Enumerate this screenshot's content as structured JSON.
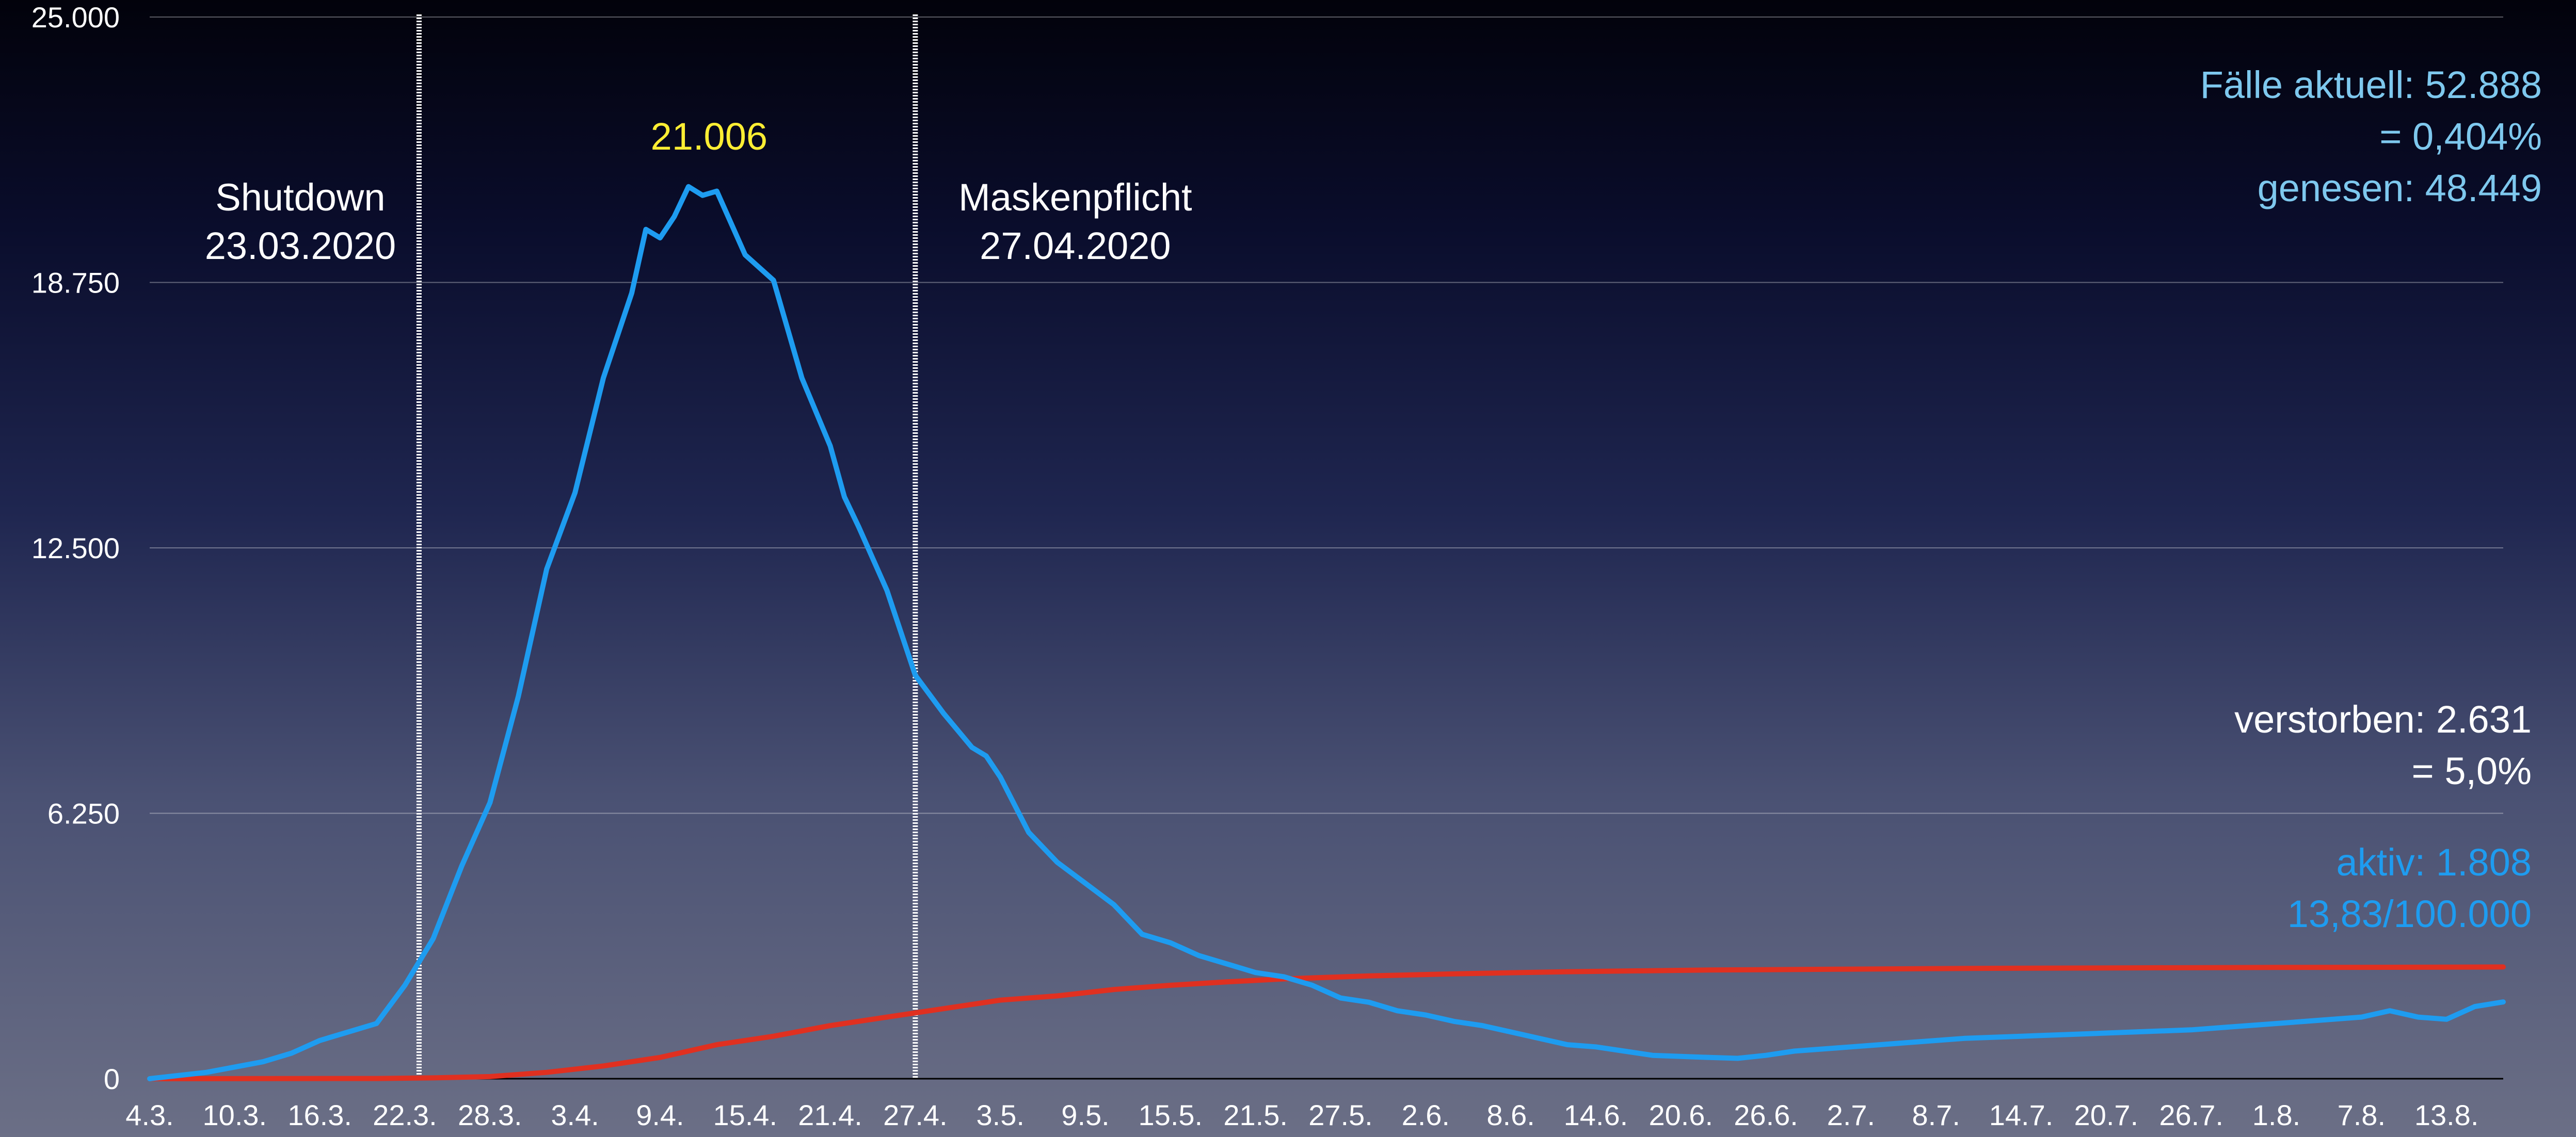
{
  "chart_data": {
    "type": "line",
    "title": "",
    "xlabel": "",
    "ylabel": "",
    "ylim": [
      0,
      25000
    ],
    "grid": true,
    "y_ticks": [
      0,
      6250,
      12500,
      18750,
      25000
    ],
    "y_tick_labels": [
      "0",
      "6.250",
      "12.500",
      "18.750",
      "25.000"
    ],
    "x_ticks": [
      "4.3.",
      "10.3.",
      "16.3.",
      "22.3.",
      "28.3.",
      "3.4.",
      "9.4.",
      "15.4.",
      "21.4.",
      "27.4.",
      "3.5.",
      "9.5.",
      "15.5.",
      "21.5.",
      "27.5.",
      "2.6.",
      "8.6.",
      "14.6.",
      "20.6.",
      "26.6.",
      "2.7.",
      "8.7.",
      "14.7.",
      "20.7.",
      "26.7.",
      "1.8.",
      "7.8.",
      "13.8."
    ],
    "x_range_days": [
      0,
      166
    ],
    "series": [
      {
        "name": "aktiv",
        "color": "#1e9cf0",
        "points": [
          [
            0,
            0
          ],
          [
            4,
            150
          ],
          [
            8,
            400
          ],
          [
            10,
            600
          ],
          [
            12,
            900
          ],
          [
            14,
            1100
          ],
          [
            16,
            1300
          ],
          [
            18,
            2200
          ],
          [
            20,
            3300
          ],
          [
            22,
            5000
          ],
          [
            24,
            6500
          ],
          [
            26,
            9000
          ],
          [
            28,
            12000
          ],
          [
            30,
            13800
          ],
          [
            32,
            16500
          ],
          [
            34,
            18500
          ],
          [
            35,
            20000
          ],
          [
            36,
            19800
          ],
          [
            37,
            20300
          ],
          [
            38,
            21006
          ],
          [
            39,
            20800
          ],
          [
            40,
            20900
          ],
          [
            42,
            19400
          ],
          [
            44,
            18800
          ],
          [
            46,
            16500
          ],
          [
            48,
            14900
          ],
          [
            49,
            13700
          ],
          [
            50,
            13000
          ],
          [
            52,
            11500
          ],
          [
            54,
            9500
          ],
          [
            56,
            8600
          ],
          [
            58,
            7800
          ],
          [
            59,
            7600
          ],
          [
            60,
            7100
          ],
          [
            62,
            5800
          ],
          [
            64,
            5100
          ],
          [
            66,
            4600
          ],
          [
            68,
            4100
          ],
          [
            70,
            3400
          ],
          [
            72,
            3200
          ],
          [
            74,
            2900
          ],
          [
            76,
            2700
          ],
          [
            78,
            2500
          ],
          [
            80,
            2400
          ],
          [
            82,
            2200
          ],
          [
            84,
            1900
          ],
          [
            86,
            1800
          ],
          [
            88,
            1600
          ],
          [
            90,
            1500
          ],
          [
            92,
            1350
          ],
          [
            94,
            1250
          ],
          [
            96,
            1100
          ],
          [
            98,
            950
          ],
          [
            100,
            800
          ],
          [
            102,
            750
          ],
          [
            104,
            650
          ],
          [
            106,
            550
          ],
          [
            110,
            500
          ],
          [
            112,
            480
          ],
          [
            114,
            550
          ],
          [
            116,
            650
          ],
          [
            120,
            750
          ],
          [
            124,
            850
          ],
          [
            128,
            950
          ],
          [
            132,
            1000
          ],
          [
            136,
            1050
          ],
          [
            140,
            1100
          ],
          [
            144,
            1150
          ],
          [
            148,
            1250
          ],
          [
            152,
            1350
          ],
          [
            156,
            1450
          ],
          [
            158,
            1600
          ],
          [
            160,
            1450
          ],
          [
            162,
            1400
          ],
          [
            164,
            1700
          ],
          [
            166,
            1808
          ]
        ]
      },
      {
        "name": "verstorben",
        "color": "#e03020",
        "points": [
          [
            0,
            0
          ],
          [
            16,
            5
          ],
          [
            20,
            20
          ],
          [
            24,
            50
          ],
          [
            28,
            150
          ],
          [
            32,
            300
          ],
          [
            36,
            500
          ],
          [
            40,
            800
          ],
          [
            44,
            1000
          ],
          [
            48,
            1250
          ],
          [
            52,
            1450
          ],
          [
            56,
            1650
          ],
          [
            60,
            1850
          ],
          [
            64,
            1950
          ],
          [
            68,
            2100
          ],
          [
            72,
            2200
          ],
          [
            76,
            2280
          ],
          [
            80,
            2350
          ],
          [
            86,
            2420
          ],
          [
            92,
            2470
          ],
          [
            100,
            2520
          ],
          [
            110,
            2560
          ],
          [
            120,
            2580
          ],
          [
            130,
            2600
          ],
          [
            140,
            2610
          ],
          [
            150,
            2620
          ],
          [
            160,
            2625
          ],
          [
            166,
            2631
          ]
        ]
      }
    ],
    "vlines": [
      {
        "day": 19,
        "label_title": "Shutdown",
        "label_date": "23.03.2020"
      },
      {
        "day": 54,
        "label_title": "Maskenpflicht",
        "label_date": "27.04.2020"
      }
    ],
    "peak": {
      "day": 38,
      "value": 21006,
      "label": "21.006",
      "color": "#ffee33"
    }
  },
  "annotations": {
    "faelle": "Fälle aktuell: 52.888",
    "faelle_pct": "= 0,404%",
    "genesen": "genesen: 48.449",
    "verstorben": "verstorben: 2.631",
    "verstorben_pct": "= 5,0%",
    "aktiv": "aktiv: 1.808",
    "aktiv_rate": "13,83/100.000",
    "colors": {
      "cases": "#7ec8ee",
      "deaths": "#ffffff",
      "active": "#1e9cf0"
    }
  }
}
